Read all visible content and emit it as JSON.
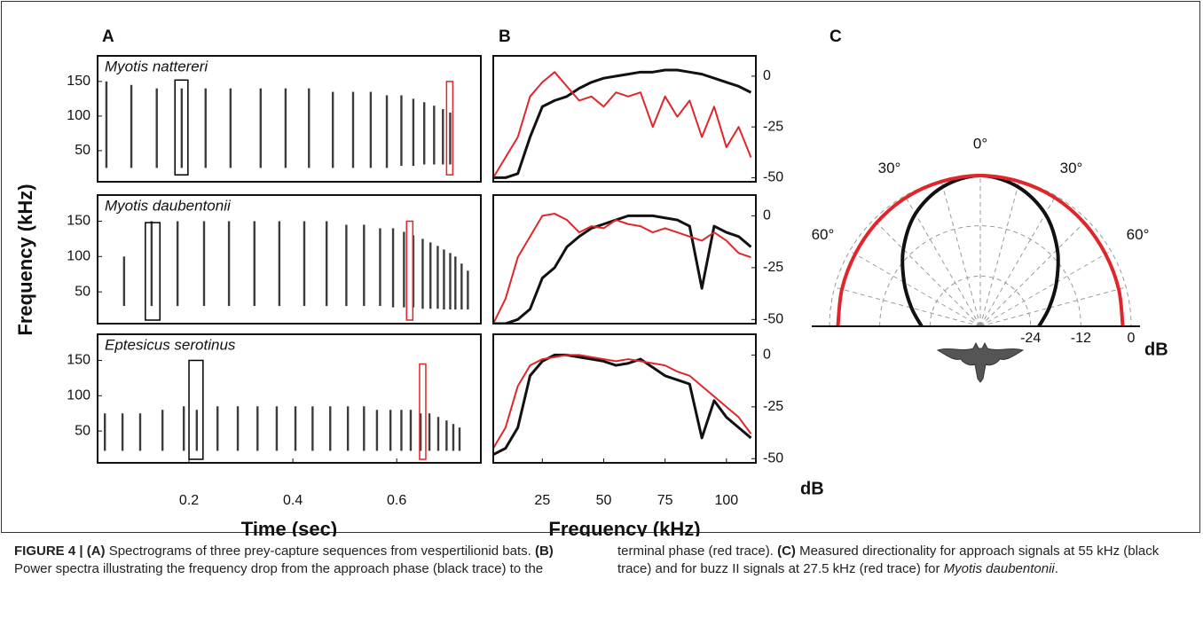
{
  "chart_data": [
    {
      "type": "spectrogram",
      "label": "A",
      "xlabel": "Time (sec)",
      "ylabel": "Frequency (kHz)",
      "xlim": [
        0.024,
        0.762
      ],
      "xticks": [
        0.2,
        0.4,
        0.6
      ],
      "ylim": [
        5,
        187
      ],
      "yticks": [
        50,
        100,
        150
      ],
      "color": "#1a1a1a",
      "panels": [
        {
          "name": "Myotis nattereri",
          "call_times": [
            0.041,
            0.089,
            0.138,
            0.186,
            0.232,
            0.28,
            0.338,
            0.386,
            0.431,
            0.477,
            0.516,
            0.55,
            0.581,
            0.609,
            0.632,
            0.653,
            0.672,
            0.689,
            0.703
          ],
          "call_high": [
            150,
            145,
            140,
            140,
            140,
            140,
            140,
            140,
            140,
            135,
            135,
            135,
            130,
            130,
            125,
            120,
            115,
            110,
            105
          ],
          "call_low": [
            25,
            25,
            25,
            25,
            25,
            25,
            25,
            25,
            25,
            25,
            25,
            25,
            25,
            28,
            28,
            30,
            30,
            30,
            30
          ],
          "boxes": [
            {
              "color": "#000000",
              "t": [
                0.173,
                0.198
              ],
              "f": [
                15,
                152
              ]
            },
            {
              "color": "#e0262b",
              "t": [
                0.696,
                0.708
              ],
              "f": [
                15,
                150
              ]
            }
          ]
        },
        {
          "name": "Myotis daubentonii",
          "call_times": [
            0.075,
            0.128,
            0.178,
            0.229,
            0.277,
            0.326,
            0.374,
            0.422,
            0.465,
            0.503,
            0.537,
            0.568,
            0.593,
            0.614,
            0.632,
            0.65,
            0.665,
            0.679,
            0.691,
            0.703,
            0.713,
            0.725,
            0.737
          ],
          "call_high": [
            100,
            150,
            150,
            150,
            150,
            150,
            150,
            150,
            150,
            145,
            145,
            140,
            140,
            135,
            130,
            125,
            120,
            115,
            110,
            105,
            100,
            90,
            80
          ],
          "call_low": [
            30,
            30,
            30,
            30,
            30,
            30,
            30,
            30,
            30,
            30,
            30,
            30,
            28,
            28,
            28,
            26,
            26,
            26,
            25,
            25,
            25,
            25,
            25
          ],
          "boxes": [
            {
              "color": "#000000",
              "t": [
                0.116,
                0.144
              ],
              "f": [
                10,
                148
              ]
            },
            {
              "color": "#e0262b",
              "t": [
                0.619,
                0.631
              ],
              "f": [
                10,
                150
              ]
            }
          ]
        },
        {
          "name": "Eptesicus serotinus",
          "call_times": [
            0.038,
            0.072,
            0.106,
            0.149,
            0.19,
            0.215,
            0.255,
            0.294,
            0.332,
            0.369,
            0.405,
            0.438,
            0.472,
            0.506,
            0.537,
            0.562,
            0.588,
            0.609,
            0.627,
            0.646,
            0.663,
            0.68,
            0.696,
            0.709,
            0.721
          ],
          "call_high": [
            75,
            75,
            75,
            80,
            85,
            80,
            85,
            85,
            85,
            85,
            85,
            85,
            85,
            85,
            85,
            80,
            80,
            80,
            80,
            75,
            75,
            70,
            65,
            60,
            55
          ],
          "call_low": [
            22,
            22,
            22,
            22,
            22,
            22,
            22,
            22,
            22,
            22,
            22,
            22,
            22,
            22,
            22,
            22,
            22,
            22,
            22,
            22,
            22,
            22,
            22,
            22,
            22
          ],
          "boxes": [
            {
              "color": "#000000",
              "t": [
                0.2,
                0.227
              ],
              "f": [
                10,
                150
              ]
            },
            {
              "color": "#e0262b",
              "t": [
                0.644,
                0.656
              ],
              "f": [
                10,
                145
              ]
            }
          ]
        }
      ]
    },
    {
      "type": "line",
      "label": "B",
      "xlabel": "Frequency (kHz)",
      "ylabel": "dB",
      "xlim": [
        5,
        112
      ],
      "xticks": [
        25,
        50,
        75,
        100
      ],
      "ylim": [
        -52,
        10
      ],
      "yticks": [
        -50,
        -25,
        0
      ],
      "x": [
        5,
        10,
        15,
        20,
        25,
        30,
        35,
        40,
        45,
        50,
        55,
        60,
        65,
        70,
        75,
        80,
        85,
        90,
        95,
        100,
        105,
        110
      ],
      "panels": [
        {
          "series": [
            {
              "color": "#111111",
              "values": [
                -50,
                -50,
                -48,
                -30,
                -15,
                -12,
                -10,
                -6,
                -3,
                -1,
                0,
                1,
                2,
                2,
                3,
                3,
                2,
                1,
                -1,
                -3,
                -5,
                -8
              ]
            },
            {
              "color": "#e0262b",
              "values": [
                -50,
                -40,
                -30,
                -10,
                -3,
                2,
                -5,
                -12,
                -10,
                -15,
                -8,
                -10,
                -8,
                -25,
                -10,
                -20,
                -12,
                -30,
                -15,
                -35,
                -25,
                -40
              ]
            }
          ]
        },
        {
          "series": [
            {
              "color": "#111111",
              "values": [
                -52,
                -52,
                -50,
                -45,
                -30,
                -25,
                -15,
                -10,
                -6,
                -4,
                -2,
                0,
                0,
                0,
                -1,
                -2,
                -5,
                -35,
                -5,
                -8,
                -10,
                -15
              ]
            },
            {
              "color": "#e0262b",
              "values": [
                -52,
                -40,
                -20,
                -10,
                0,
                1,
                -2,
                -8,
                -5,
                -6,
                -2,
                -4,
                -5,
                -8,
                -6,
                -8,
                -10,
                -12,
                -8,
                -12,
                -18,
                -20
              ]
            }
          ]
        },
        {
          "series": [
            {
              "color": "#111111",
              "values": [
                -48,
                -45,
                -35,
                -10,
                -3,
                0,
                0,
                -1,
                -2,
                -3,
                -5,
                -4,
                -2,
                -6,
                -10,
                -12,
                -14,
                -40,
                -22,
                -30,
                -35,
                -40
              ]
            },
            {
              "color": "#e0262b",
              "values": [
                -45,
                -35,
                -15,
                -5,
                -2,
                -1,
                0,
                0,
                -1,
                -2,
                -3,
                -2,
                -3,
                -4,
                -5,
                -8,
                -10,
                -15,
                -20,
                -25,
                -30,
                -38
              ]
            }
          ]
        }
      ]
    },
    {
      "type": "polar",
      "label": "C",
      "rlabel": "dB",
      "rlim": [
        -36,
        0
      ],
      "rticks": [
        -24,
        -12,
        0
      ],
      "angle_ticks": [
        {
          "value": 0,
          "label": "0°"
        },
        {
          "value": -30,
          "label": "30°"
        },
        {
          "value": 30,
          "label": "30°"
        },
        {
          "value": -60,
          "label": "60°"
        },
        {
          "value": 60,
          "label": "60°"
        }
      ],
      "angles": [
        -90,
        -75,
        -60,
        -45,
        -30,
        -15,
        0,
        15,
        30,
        45,
        60,
        75,
        90
      ],
      "series": [
        {
          "color": "#111111",
          "values": [
            -22,
            -19,
            -15,
            -10,
            -5,
            -1.5,
            0,
            -1.5,
            -5,
            -10,
            -15,
            -19,
            -22
          ]
        },
        {
          "color": "#e0262b",
          "values": [
            -2,
            -1.8,
            -1.5,
            -1,
            -0.5,
            -0.2,
            0,
            -0.2,
            -0.5,
            -1,
            -1.5,
            -1.8,
            -2
          ]
        }
      ]
    }
  ],
  "caption": [
    {
      "text": "FIGURE 4 | (A)",
      "style": "bold"
    },
    {
      "text": " Spectrograms of three prey-capture sequences from vespertilionid bats. ",
      "style": "normal"
    },
    {
      "text": "(B)",
      "style": "bold"
    },
    {
      "text": " Power spectra illustrating the frequency drop from the approach phase (black trace) to the terminal phase (red trace). ",
      "style": "normal"
    },
    {
      "text": "(C)",
      "style": "bold"
    },
    {
      "text": " Measured directionality for approach signals at 55 kHz (black trace) and for buzz II signals at 27.5 kHz (red trace) for ",
      "style": "normal"
    },
    {
      "text": "Myotis daubentonii",
      "style": "italic"
    },
    {
      "text": ".",
      "style": "normal"
    }
  ]
}
